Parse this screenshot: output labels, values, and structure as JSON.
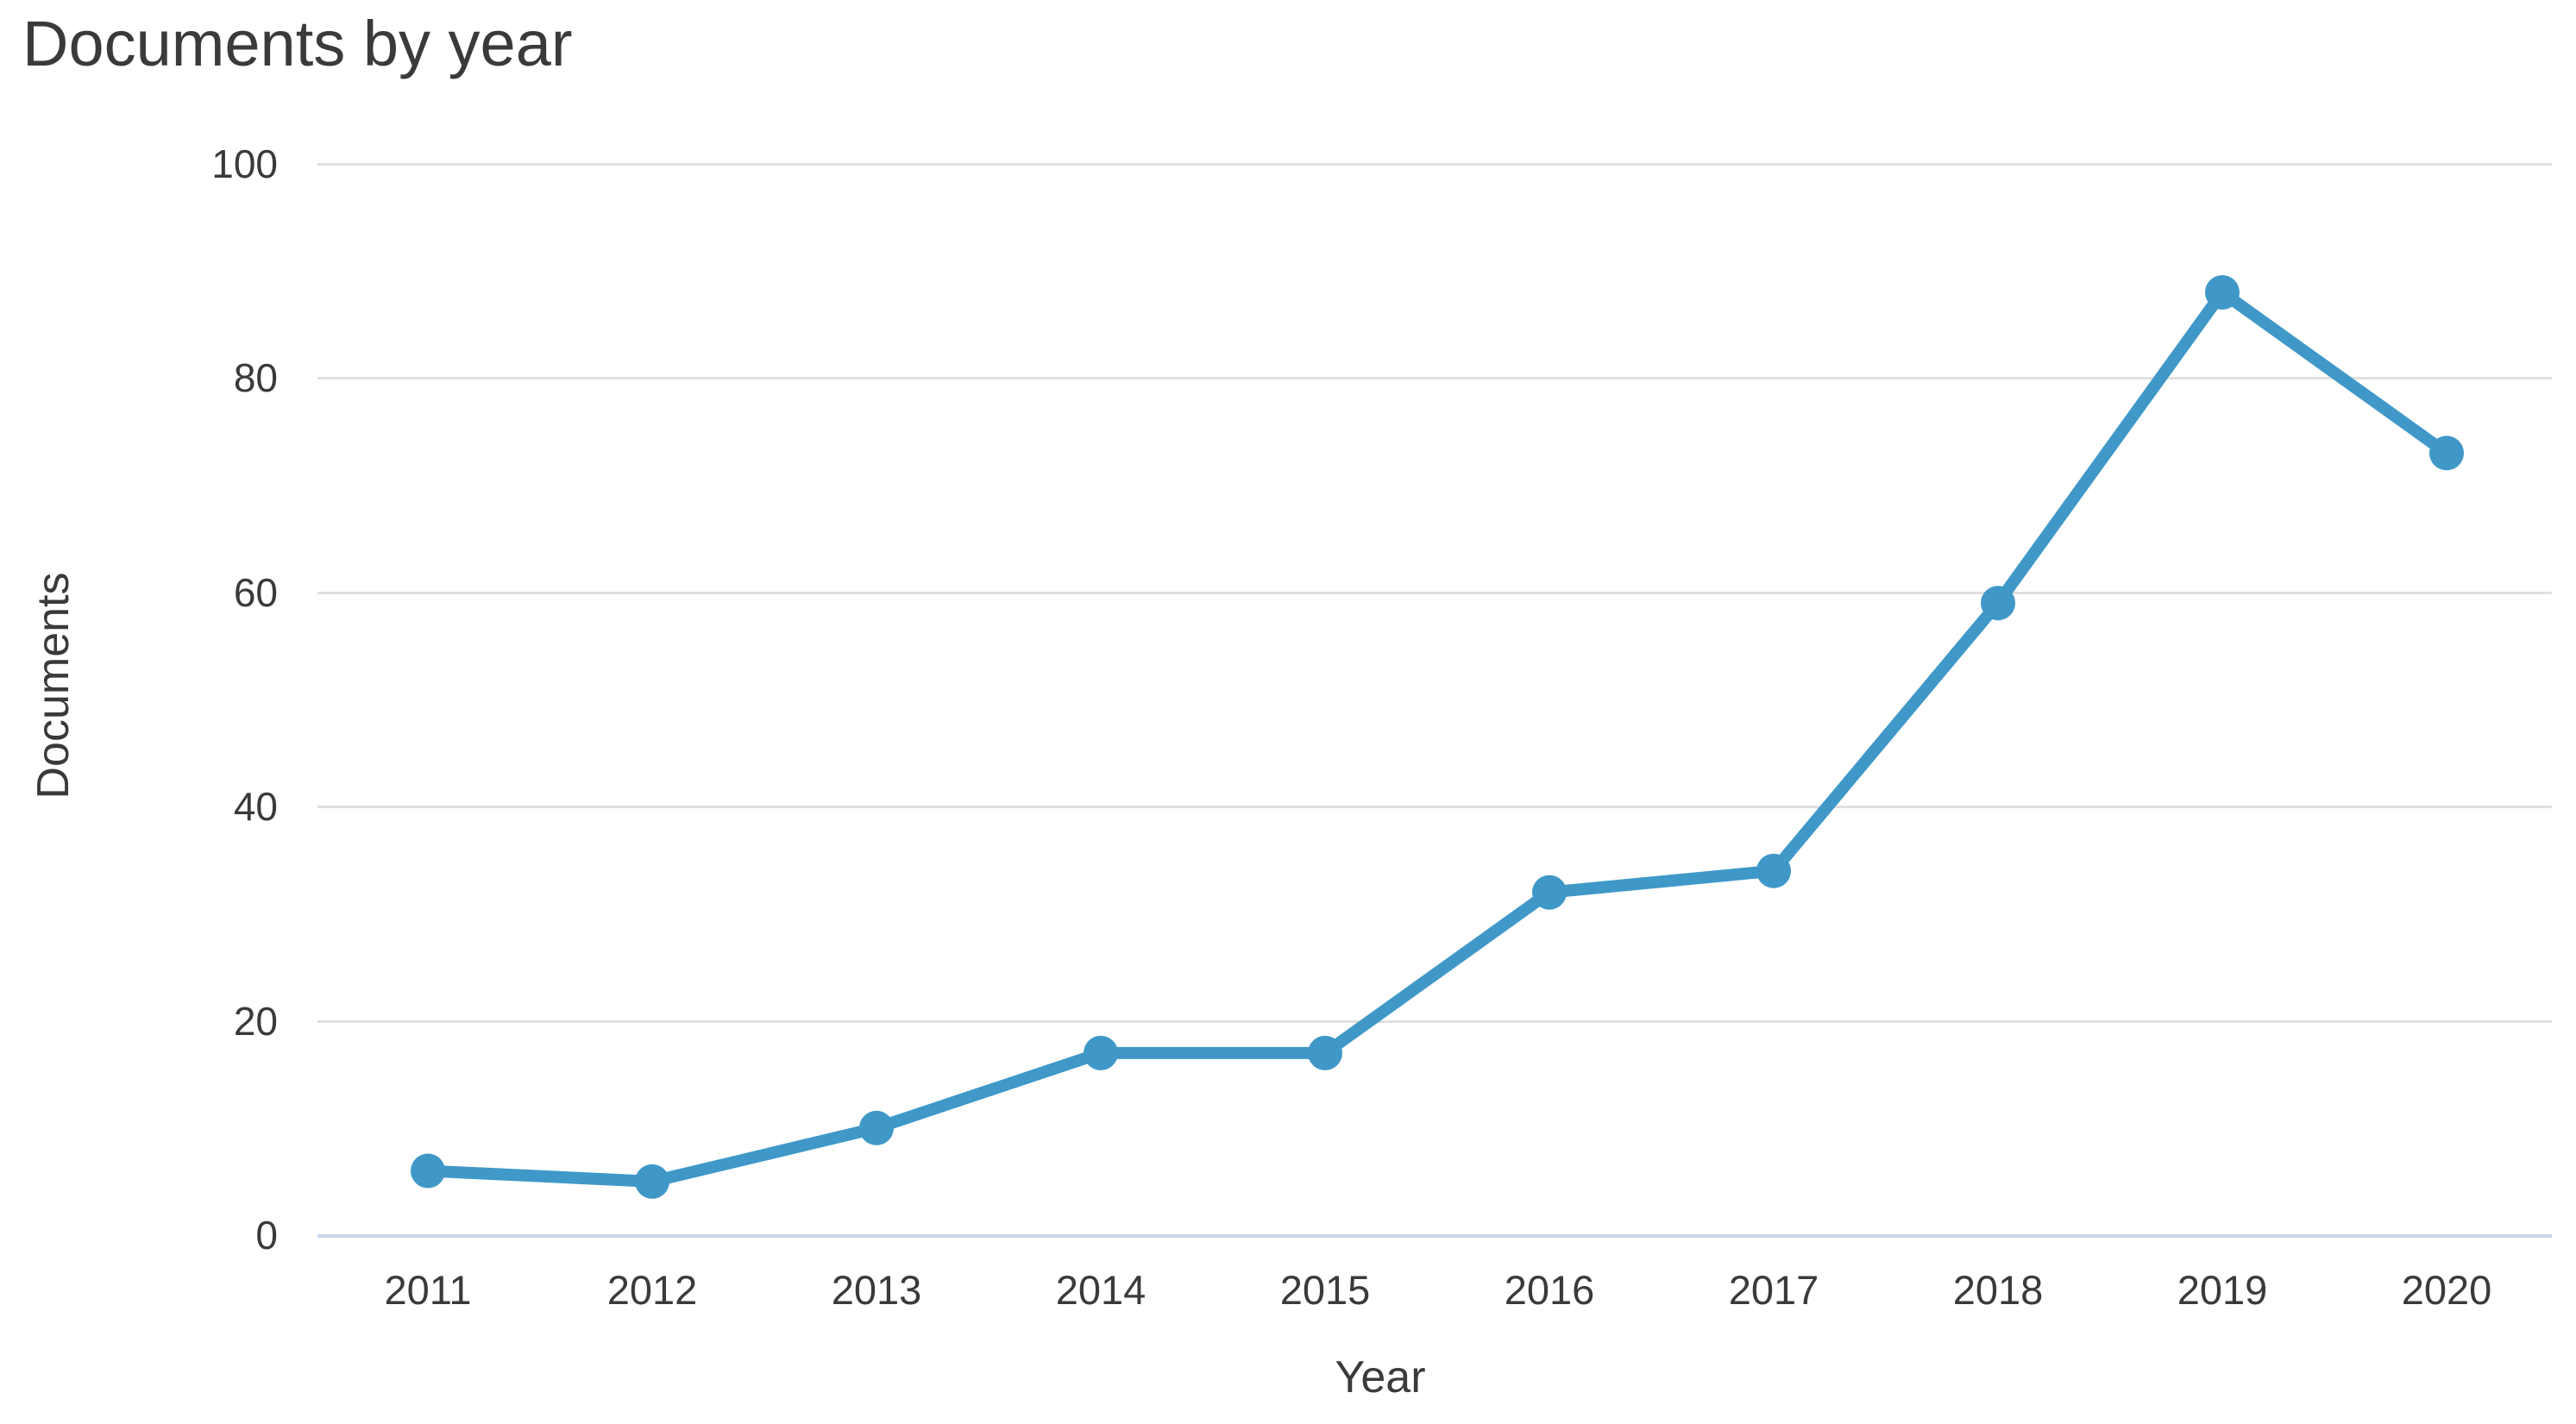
{
  "chart_data": {
    "type": "line",
    "title": "Documents by year",
    "xlabel": "Year",
    "ylabel": "Documents",
    "categories": [
      "2011",
      "2012",
      "2013",
      "2014",
      "2015",
      "2016",
      "2017",
      "2018",
      "2019",
      "2020"
    ],
    "series": [
      {
        "name": "Documents",
        "values": [
          6,
          5,
          10,
          17,
          17,
          32,
          34,
          59,
          88,
          73
        ]
      }
    ],
    "ylim": [
      0,
      100
    ],
    "yticks": [
      0,
      20,
      40,
      60,
      80,
      100
    ],
    "grid": "horizontal",
    "legend": "none",
    "colors": {
      "line": "#3f98c8",
      "marker": "#3f98c8",
      "gridline": "#e0e0e0",
      "zero_axis_line": "#ccd7e9",
      "text": "#3a3a3a",
      "background": "#ffffff"
    }
  }
}
